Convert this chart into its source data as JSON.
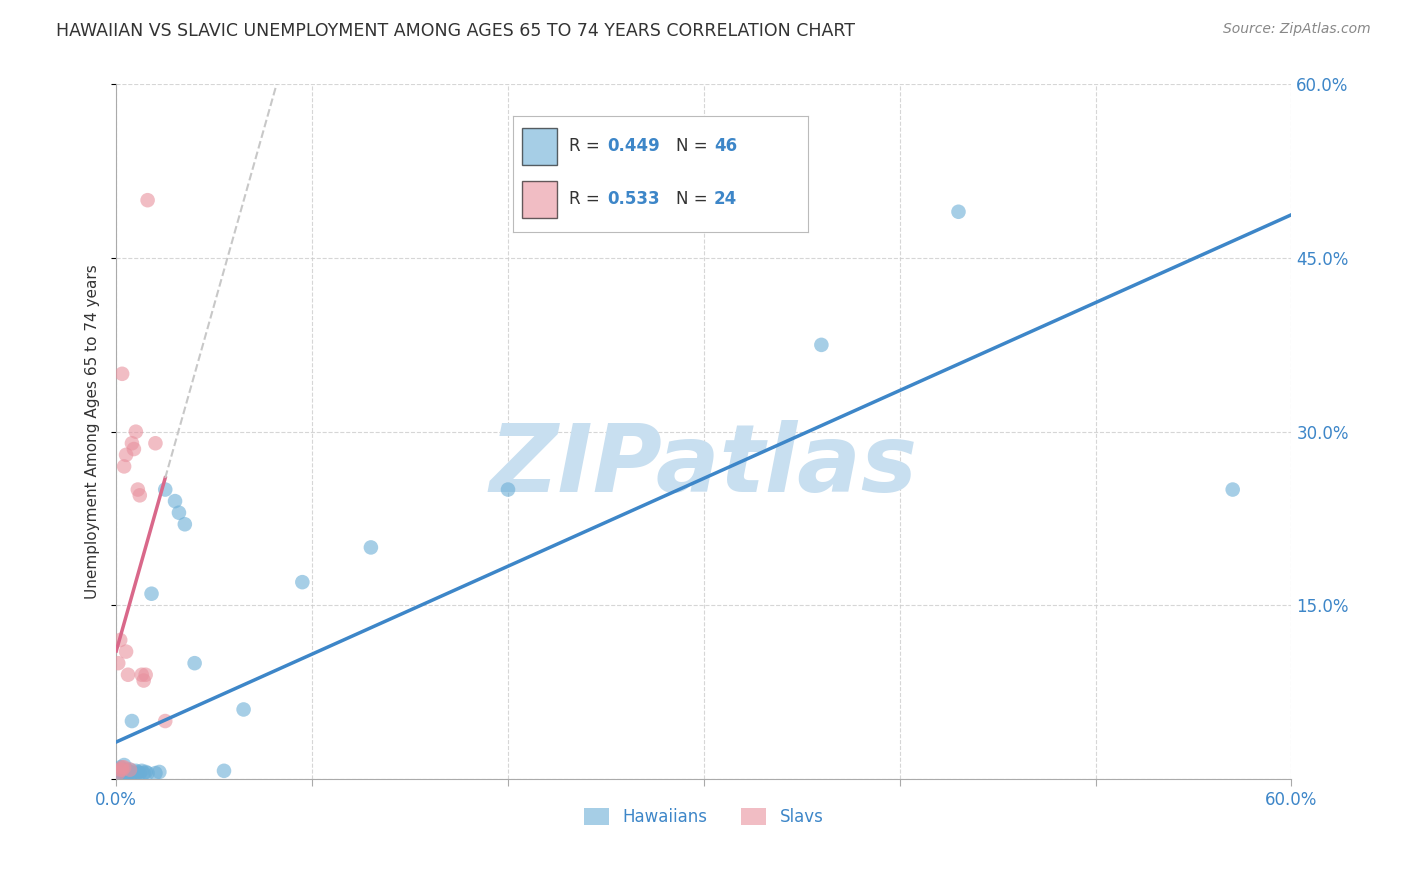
{
  "title": "HAWAIIAN VS SLAVIC UNEMPLOYMENT AMONG AGES 65 TO 74 YEARS CORRELATION CHART",
  "source": "Source: ZipAtlas.com",
  "ylabel": "Unemployment Among Ages 65 to 74 years",
  "xlim": [
    0.0,
    0.6
  ],
  "ylim": [
    0.0,
    0.6
  ],
  "xtick_positions": [
    0.0,
    0.1,
    0.2,
    0.3,
    0.4,
    0.5,
    0.6
  ],
  "xtick_labels": [
    "0.0%",
    "",
    "",
    "",
    "",
    "",
    "60.0%"
  ],
  "ytick_positions": [
    0.0,
    0.15,
    0.3,
    0.45,
    0.6
  ],
  "ytick_labels": [
    "",
    "15.0%",
    "30.0%",
    "45.0%",
    "60.0%"
  ],
  "grid_color": "#cccccc",
  "background_color": "#ffffff",
  "hawaiian_color": "#6baed6",
  "slavic_color": "#e8919e",
  "hawaiian_R": "0.449",
  "hawaiian_N": "46",
  "slavic_R": "0.533",
  "slavic_N": "24",
  "hawaiian_label": "Hawaiians",
  "slavic_label": "Slavs",
  "hawaiian_scatter_x": [
    0.001,
    0.001,
    0.002,
    0.002,
    0.002,
    0.003,
    0.003,
    0.003,
    0.004,
    0.004,
    0.004,
    0.005,
    0.005,
    0.005,
    0.006,
    0.006,
    0.006,
    0.007,
    0.007,
    0.008,
    0.008,
    0.009,
    0.01,
    0.01,
    0.011,
    0.012,
    0.013,
    0.014,
    0.015,
    0.016,
    0.018,
    0.02,
    0.022,
    0.025,
    0.03,
    0.032,
    0.035,
    0.04,
    0.055,
    0.065,
    0.095,
    0.13,
    0.2,
    0.36,
    0.43,
    0.57
  ],
  "hawaiian_scatter_y": [
    0.005,
    0.008,
    0.004,
    0.006,
    0.01,
    0.003,
    0.006,
    0.008,
    0.004,
    0.007,
    0.012,
    0.003,
    0.005,
    0.008,
    0.005,
    0.007,
    0.004,
    0.006,
    0.008,
    0.005,
    0.05,
    0.005,
    0.004,
    0.007,
    0.006,
    0.005,
    0.007,
    0.005,
    0.006,
    0.005,
    0.16,
    0.005,
    0.006,
    0.25,
    0.24,
    0.23,
    0.22,
    0.1,
    0.007,
    0.06,
    0.17,
    0.2,
    0.25,
    0.375,
    0.49,
    0.25
  ],
  "slavic_scatter_x": [
    0.001,
    0.001,
    0.002,
    0.002,
    0.003,
    0.003,
    0.003,
    0.004,
    0.004,
    0.005,
    0.005,
    0.006,
    0.007,
    0.008,
    0.009,
    0.01,
    0.011,
    0.012,
    0.013,
    0.014,
    0.015,
    0.016,
    0.02,
    0.025
  ],
  "slavic_scatter_y": [
    0.005,
    0.1,
    0.008,
    0.12,
    0.008,
    0.01,
    0.35,
    0.27,
    0.01,
    0.11,
    0.28,
    0.09,
    0.008,
    0.29,
    0.285,
    0.3,
    0.25,
    0.245,
    0.09,
    0.085,
    0.09,
    0.5,
    0.29,
    0.05
  ],
  "watermark_text": "ZIPatlas",
  "watermark_color": "#c8dff0",
  "trendline_hawaiian_color": "#3d86c8",
  "trendline_slavic_solid_color": "#d9688a",
  "trendline_slavic_dash_color": "#c8c8c8",
  "legend_box_color": "#ffffff",
  "legend_border_color": "#cccccc",
  "R_label_color": "#333333",
  "RN_value_color": "#3d86c8",
  "axis_label_color": "#3d86c8",
  "title_color": "#333333",
  "source_color": "#888888"
}
